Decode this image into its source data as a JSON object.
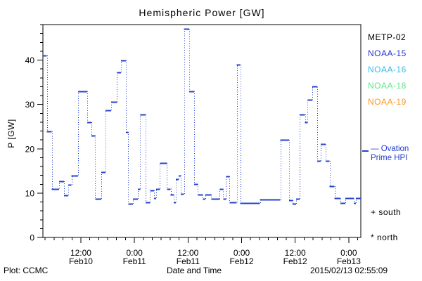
{
  "title": "Hemispheric Power [GW]",
  "legend": {
    "items": [
      {
        "label": "METP-02",
        "color": "#000000"
      },
      {
        "label": "NOAA-15",
        "color": "#2833cc"
      },
      {
        "label": "NOAA-16",
        "color": "#33bbee"
      },
      {
        "label": "NOAA-18",
        "color": "#5ae687"
      },
      {
        "label": "NOAA-19",
        "color": "#ff981e"
      }
    ],
    "model_label_line1": "— Ovation",
    "model_label_line2": "Prime HPI",
    "model_color": "#2540cc",
    "south_marker": "+ south",
    "north_marker": "* north"
  },
  "footer": {
    "left": "Plot: CCMC",
    "right": "2015/02/13 02:55:09"
  },
  "chart_data": {
    "type": "line",
    "style": "steps",
    "title": "Hemispheric Power [GW]",
    "xlabel": "Date and Time",
    "ylabel": "P [GW]",
    "series_name": "Ovation Prime HPI",
    "x_unit": "hours since 2015-02-10 00:00 UT",
    "xlim": [
      3.5,
      74.7
    ],
    "ylim": [
      0,
      48
    ],
    "y_major_ticks": [
      0,
      10,
      20,
      30,
      40
    ],
    "y_minor_step": 2,
    "x_minor_step": 2,
    "x_major_ticks": [
      {
        "t": 12,
        "time": "12:00",
        "date": "Feb10"
      },
      {
        "t": 24,
        "time": "0:00",
        "date": "Feb11"
      },
      {
        "t": 36,
        "time": "12:00",
        "date": "Feb11"
      },
      {
        "t": 48,
        "time": "0:00",
        "date": "Feb12"
      },
      {
        "t": 60,
        "time": "12:00",
        "date": "Feb12"
      },
      {
        "t": 72,
        "time": "0:00",
        "date": "Feb13"
      }
    ],
    "line_color": "#2540cc",
    "steps": [
      [
        3.5,
        41
      ],
      [
        4.4,
        24
      ],
      [
        5.5,
        11
      ],
      [
        7.1,
        12.7
      ],
      [
        8.2,
        9.5
      ],
      [
        9.2,
        11.9
      ],
      [
        9.9,
        14
      ],
      [
        11.4,
        33
      ],
      [
        13.4,
        26
      ],
      [
        14.4,
        23
      ],
      [
        15.2,
        8.7
      ],
      [
        16.6,
        14.8
      ],
      [
        17.5,
        28.7
      ],
      [
        18.8,
        30.6
      ],
      [
        20.1,
        37.2
      ],
      [
        21.0,
        40
      ],
      [
        22.1,
        23.8
      ],
      [
        22.6,
        7.6
      ],
      [
        23.7,
        8.7
      ],
      [
        24.8,
        11
      ],
      [
        25.3,
        27.8
      ],
      [
        26.5,
        7.9
      ],
      [
        27.5,
        10.6
      ],
      [
        28.4,
        8.9
      ],
      [
        28.9,
        11
      ],
      [
        29.7,
        16.8
      ],
      [
        31.3,
        11
      ],
      [
        32.1,
        9.7
      ],
      [
        32.8,
        7.9
      ],
      [
        33.3,
        13.2
      ],
      [
        33.9,
        14
      ],
      [
        34.4,
        9.8
      ],
      [
        35.1,
        47
      ],
      [
        36.3,
        33
      ],
      [
        37.4,
        12
      ],
      [
        38.2,
        9.6
      ],
      [
        39.3,
        8.7
      ],
      [
        39.9,
        9.7
      ],
      [
        41.2,
        8.7
      ],
      [
        43.1,
        10.9
      ],
      [
        43.9,
        8.7
      ],
      [
        44.5,
        13.8
      ],
      [
        45.3,
        7.9
      ],
      [
        46.9,
        39
      ],
      [
        47.7,
        7.8
      ],
      [
        52.1,
        8.5
      ],
      [
        56.7,
        22
      ],
      [
        58.6,
        8.4
      ],
      [
        59.4,
        7.6
      ],
      [
        60.2,
        8.7
      ],
      [
        61.0,
        27.8
      ],
      [
        62.2,
        26
      ],
      [
        62.8,
        31
      ],
      [
        63.8,
        34
      ],
      [
        64.9,
        17.3
      ],
      [
        65.7,
        21
      ],
      [
        66.8,
        17.3
      ],
      [
        67.7,
        11.6
      ],
      [
        68.8,
        8.8
      ],
      [
        70.1,
        7.8
      ],
      [
        71.2,
        8.8
      ],
      [
        73.1,
        7.8
      ],
      [
        73.6,
        8.8
      ]
    ],
    "end_time": 74.7,
    "grid": false,
    "legend_position": "right"
  }
}
